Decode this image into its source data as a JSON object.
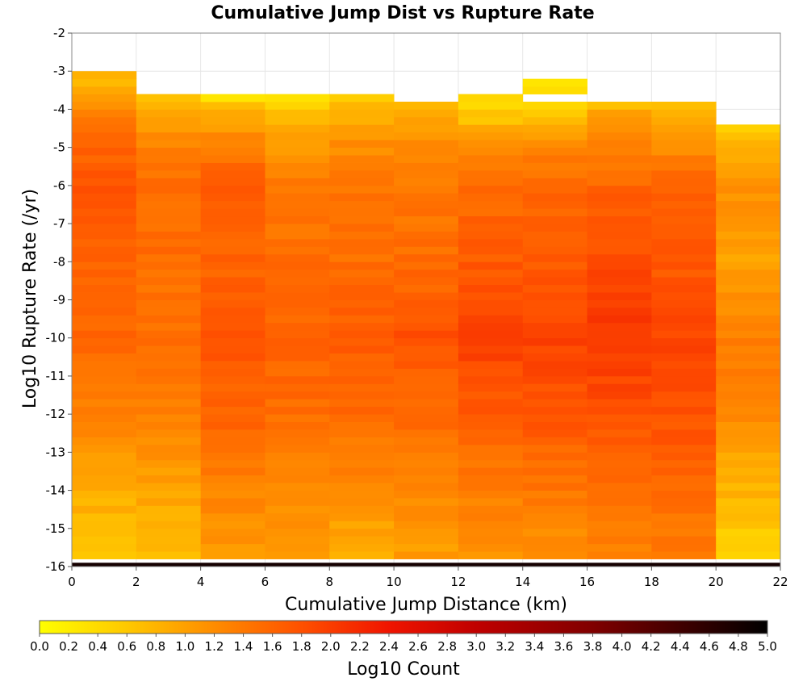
{
  "chart_data": {
    "type": "heatmap",
    "title": "Cumulative Jump Dist vs Rupture Rate",
    "xlabel": "Cumulative Jump Distance (km)",
    "ylabel": "Log10 Rupture Rate (/yr)",
    "xlim": [
      0,
      22
    ],
    "ylim": [
      -16,
      -2
    ],
    "x_ticks": [
      "0",
      "2",
      "4",
      "6",
      "8",
      "10",
      "12",
      "14",
      "16",
      "18",
      "20",
      "22"
    ],
    "y_ticks": [
      "-2",
      "-3",
      "-4",
      "-5",
      "-6",
      "-7",
      "-8",
      "-9",
      "-10",
      "-11",
      "-12",
      "-13",
      "-14",
      "-15",
      "-16"
    ],
    "x_bin_width": 2,
    "y_bin_height": 0.2,
    "columns": [
      {
        "x0": 0,
        "top": -3.0,
        "profile": [
          [
            -16,
            0.7
          ],
          [
            -14,
            0.85
          ],
          [
            -12,
            1.3
          ],
          [
            -10,
            1.55
          ],
          [
            -8,
            1.6
          ],
          [
            -6,
            1.8
          ],
          [
            -5,
            1.6
          ],
          [
            -4,
            1.3
          ],
          [
            -3.4,
            0.9
          ],
          [
            -3,
            0.7
          ]
        ]
      },
      {
        "x0": 2,
        "top": -3.6,
        "profile": [
          [
            -16,
            0.75
          ],
          [
            -14,
            0.95
          ],
          [
            -12,
            1.3
          ],
          [
            -10,
            1.5
          ],
          [
            -8,
            1.5
          ],
          [
            -6,
            1.5
          ],
          [
            -5,
            1.3
          ],
          [
            -4.2,
            1.0
          ],
          [
            -3.6,
            0.6
          ]
        ]
      },
      {
        "x0": 4,
        "top": -3.6,
        "profile": [
          [
            -16,
            1.0
          ],
          [
            -14,
            1.3
          ],
          [
            -12,
            1.6
          ],
          [
            -10,
            1.75
          ],
          [
            -8,
            1.6
          ],
          [
            -6,
            1.7
          ],
          [
            -5,
            1.4
          ],
          [
            -4,
            0.8
          ],
          [
            -3.6,
            0.2
          ]
        ]
      },
      {
        "x0": 6,
        "top": -3.6,
        "profile": [
          [
            -16,
            1.0
          ],
          [
            -14,
            1.2
          ],
          [
            -12,
            1.5
          ],
          [
            -10,
            1.65
          ],
          [
            -8,
            1.5
          ],
          [
            -6,
            1.4
          ],
          [
            -5,
            1.1
          ],
          [
            -4,
            0.6
          ],
          [
            -3.6,
            0.2
          ]
        ]
      },
      {
        "x0": 8,
        "top": -3.6,
        "profile": [
          [
            -16,
            0.8
          ],
          [
            -14,
            1.2
          ],
          [
            -12,
            1.55
          ],
          [
            -10,
            1.7
          ],
          [
            -8,
            1.5
          ],
          [
            -6,
            1.4
          ],
          [
            -5,
            1.2
          ],
          [
            -4,
            0.8
          ],
          [
            -3.6,
            0.55
          ]
        ]
      },
      {
        "x0": 10,
        "top": -3.8,
        "profile": [
          [
            -16,
            1.0
          ],
          [
            -14,
            1.25
          ],
          [
            -12,
            1.55
          ],
          [
            -10,
            1.8
          ],
          [
            -8,
            1.5
          ],
          [
            -6,
            1.4
          ],
          [
            -5,
            1.2
          ],
          [
            -4.2,
            0.9
          ],
          [
            -3.8,
            0.75
          ]
        ]
      },
      {
        "x0": 12,
        "top": -3.6,
        "profile": [
          [
            -16,
            1.1
          ],
          [
            -14,
            1.35
          ],
          [
            -12,
            1.7
          ],
          [
            -10,
            1.95
          ],
          [
            -8,
            1.7
          ],
          [
            -6,
            1.5
          ],
          [
            -5,
            1.2
          ],
          [
            -4,
            0.5
          ],
          [
            -3.6,
            0.4
          ]
        ]
      },
      {
        "x0": 14,
        "top": -3.3,
        "gap": [
          -3.8,
          -3.6
        ],
        "profile": [
          [
            -16,
            1.1
          ],
          [
            -14,
            1.4
          ],
          [
            -12,
            1.75
          ],
          [
            -10,
            1.95
          ],
          [
            -8,
            1.7
          ],
          [
            -6,
            1.55
          ],
          [
            -5,
            1.3
          ],
          [
            -4.2,
            0.6
          ],
          [
            -3.8,
            0.3
          ],
          [
            -3.3,
            0.3
          ]
        ]
      },
      {
        "x0": 16,
        "top": -3.8,
        "profile": [
          [
            -16,
            1.2
          ],
          [
            -14,
            1.5
          ],
          [
            -12,
            1.8
          ],
          [
            -10,
            2.05
          ],
          [
            -8,
            1.85
          ],
          [
            -6,
            1.6
          ],
          [
            -5,
            1.3
          ],
          [
            -4.2,
            1.0
          ],
          [
            -3.8,
            0.7
          ]
        ]
      },
      {
        "x0": 18,
        "top": -3.8,
        "profile": [
          [
            -16,
            1.3
          ],
          [
            -14,
            1.55
          ],
          [
            -12,
            1.8
          ],
          [
            -10,
            1.9
          ],
          [
            -8,
            1.7
          ],
          [
            -6,
            1.6
          ],
          [
            -5,
            1.2
          ],
          [
            -4.2,
            0.9
          ],
          [
            -3.8,
            0.7
          ]
        ]
      },
      {
        "x0": 20,
        "top": -4.4,
        "profile": [
          [
            -16,
            0.35
          ],
          [
            -15,
            0.6
          ],
          [
            -14,
            0.8
          ],
          [
            -13,
            1.0
          ],
          [
            -11,
            1.4
          ],
          [
            -10,
            1.3
          ],
          [
            -8,
            1.0
          ],
          [
            -6,
            1.15
          ],
          [
            -5,
            0.9
          ],
          [
            -4.6,
            0.5
          ],
          [
            -4.4,
            0.3
          ]
        ]
      }
    ],
    "bottom_row": {
      "y": -16,
      "value": 4.8
    },
    "colorbar": {
      "label": "Log10 Count",
      "min": 0.0,
      "max": 5.0,
      "ticks": [
        "0.0",
        "0.2",
        "0.4",
        "0.6",
        "0.8",
        "1.0",
        "1.2",
        "1.4",
        "1.6",
        "1.8",
        "2.0",
        "2.2",
        "2.4",
        "2.6",
        "2.8",
        "3.0",
        "3.2",
        "3.4",
        "3.6",
        "3.8",
        "4.0",
        "4.2",
        "4.4",
        "4.6",
        "4.8",
        "5.0"
      ],
      "stops": [
        [
          0.0,
          "#ffff00"
        ],
        [
          0.6,
          "#ffc800"
        ],
        [
          1.2,
          "#ff8c00"
        ],
        [
          1.8,
          "#ff5000"
        ],
        [
          2.4,
          "#f01400"
        ],
        [
          3.0,
          "#c00000"
        ],
        [
          3.8,
          "#800000"
        ],
        [
          4.4,
          "#400000"
        ],
        [
          5.0,
          "#000000"
        ]
      ]
    }
  }
}
